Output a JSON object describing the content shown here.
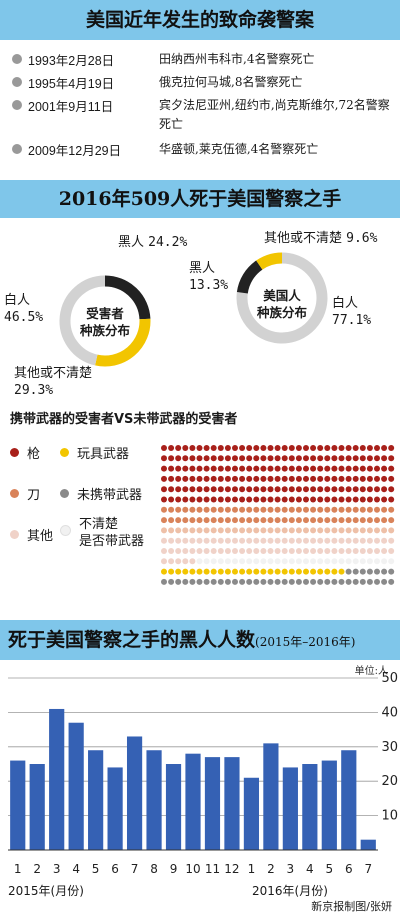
{
  "sections": {
    "incidents_title": "美国近年发生的致命袭警案",
    "deaths_title": "2016年509人死于美国警察之手",
    "chart_title": "死于美国警察之手的黑人人数",
    "chart_title_range": "(2015年–2016年)"
  },
  "incidents": [
    {
      "date": "1993年2月28日",
      "desc": "田纳西州韦科市,4名警察死亡"
    },
    {
      "date": "1995年4月19日",
      "desc": "俄克拉何马城,8名警察死亡"
    },
    {
      "date": "2001年9月11日",
      "desc": "宾夕法尼亚州,纽约市,尚克斯维尔,72名警察死亡"
    },
    {
      "date": "2009年12月29日",
      "desc": "华盛顿,莱克伍德,4名警察死亡"
    }
  ],
  "victims_ring": {
    "title_line1": "受害者",
    "title_line2": "种族分布",
    "segments": [
      {
        "name": "黑人",
        "value": 24.2,
        "label": "24.2%",
        "color": "#222222"
      },
      {
        "name": "其他或不清楚",
        "value": 29.3,
        "label": "29.3%",
        "color": "#f2c500"
      },
      {
        "name": "白人",
        "value": 46.5,
        "label": "46.5%",
        "color": "#d2d2d2"
      }
    ]
  },
  "population_ring": {
    "title_line1": "美国人",
    "title_line2": "种族分布",
    "segments": [
      {
        "name": "白人",
        "value": 77.1,
        "label": "77.1%",
        "color": "#d2d2d2"
      },
      {
        "name": "黑人",
        "value": 13.3,
        "label": "13.3%",
        "color": "#222222"
      },
      {
        "name": "其他或不清楚",
        "value": 9.6,
        "label": "9.6%",
        "color": "#f2c500"
      }
    ]
  },
  "weapons": {
    "title": "携带武器的受害者VS未带武器的受害者",
    "legend": [
      {
        "key": "gun",
        "label": "枪",
        "color": "#a8201a"
      },
      {
        "key": "toy",
        "label": "玩具武器",
        "color": "#f2c500"
      },
      {
        "key": "knife",
        "label": "刀",
        "color": "#d9835a"
      },
      {
        "key": "unarmed",
        "label": "未携带武器",
        "color": "#8a8a8a"
      },
      {
        "key": "other",
        "label": "其他",
        "color": "#f0d2c8"
      },
      {
        "key": "unknown_line1",
        "label": "不清楚",
        "color": "#f4f4f4"
      },
      {
        "key": "unknown_line2",
        "label": "是否带武器",
        "color": ""
      }
    ]
  },
  "chart_data": {
    "type": "bar",
    "unit_label": "单位:人",
    "categories": [
      "1",
      "2",
      "3",
      "4",
      "5",
      "6",
      "7",
      "8",
      "9",
      "10",
      "11",
      "12",
      "1",
      "2",
      "3",
      "4",
      "5",
      "6",
      "7"
    ],
    "year_labels": [
      "2015年(月份)",
      "2016年(月份)"
    ],
    "values": [
      26,
      25,
      41,
      37,
      29,
      24,
      33,
      29,
      25,
      28,
      27,
      27,
      21,
      31,
      24,
      25,
      26,
      29,
      3
    ],
    "ylim": [
      0,
      50
    ],
    "yticks": [
      10,
      20,
      30,
      40,
      50
    ],
    "bar_color": "#3561b4",
    "grid": true
  },
  "credit": "新京报制图/张妍"
}
